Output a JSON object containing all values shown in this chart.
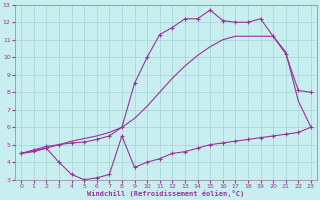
{
  "xlabel": "Windchill (Refroidissement éolien,°C)",
  "xlim": [
    -0.5,
    23.5
  ],
  "ylim": [
    3,
    13
  ],
  "xticks": [
    0,
    1,
    2,
    3,
    4,
    5,
    6,
    7,
    8,
    9,
    10,
    11,
    12,
    13,
    14,
    15,
    16,
    17,
    18,
    19,
    20,
    21,
    22,
    23
  ],
  "yticks": [
    3,
    4,
    5,
    6,
    7,
    8,
    9,
    10,
    11,
    12,
    13
  ],
  "bg_color": "#c8eef0",
  "line_color": "#993399",
  "grid_color": "#a8d8dc",
  "line1_x": [
    0,
    1,
    2,
    3,
    4,
    5,
    6,
    7,
    8,
    9,
    10,
    11,
    12,
    13,
    14,
    15,
    16,
    17,
    18,
    19,
    20,
    21,
    22,
    23
  ],
  "line1_y": [
    4.5,
    4.7,
    4.9,
    5.0,
    5.1,
    5.15,
    5.3,
    5.5,
    6.0,
    8.5,
    10.0,
    11.3,
    11.7,
    12.2,
    12.2,
    12.7,
    12.1,
    12.0,
    12.0,
    12.2,
    11.2,
    10.2,
    8.1,
    8.0
  ],
  "line2_x": [
    0,
    1,
    2,
    3,
    4,
    5,
    6,
    7,
    8,
    9,
    10,
    11,
    12,
    13,
    14,
    15,
    16,
    17,
    18,
    19,
    20,
    21,
    22,
    23
  ],
  "line2_y": [
    4.5,
    4.6,
    4.8,
    5.0,
    5.2,
    5.35,
    5.5,
    5.7,
    6.0,
    6.5,
    7.2,
    8.0,
    8.8,
    9.5,
    10.1,
    10.6,
    11.0,
    11.2,
    11.2,
    11.2,
    11.2,
    10.3,
    7.5,
    6.0
  ],
  "line3_x": [
    0,
    1,
    2,
    3,
    4,
    5,
    6,
    7,
    8,
    9,
    10,
    11,
    12,
    13,
    14,
    15,
    16,
    17,
    18,
    19,
    20,
    21,
    22,
    23
  ],
  "line3_y": [
    4.5,
    4.65,
    4.8,
    4.0,
    3.3,
    3.0,
    3.1,
    3.3,
    5.5,
    3.7,
    4.0,
    4.2,
    4.5,
    4.6,
    4.8,
    5.0,
    5.1,
    5.2,
    5.3,
    5.4,
    5.5,
    5.6,
    5.7,
    6.0
  ]
}
